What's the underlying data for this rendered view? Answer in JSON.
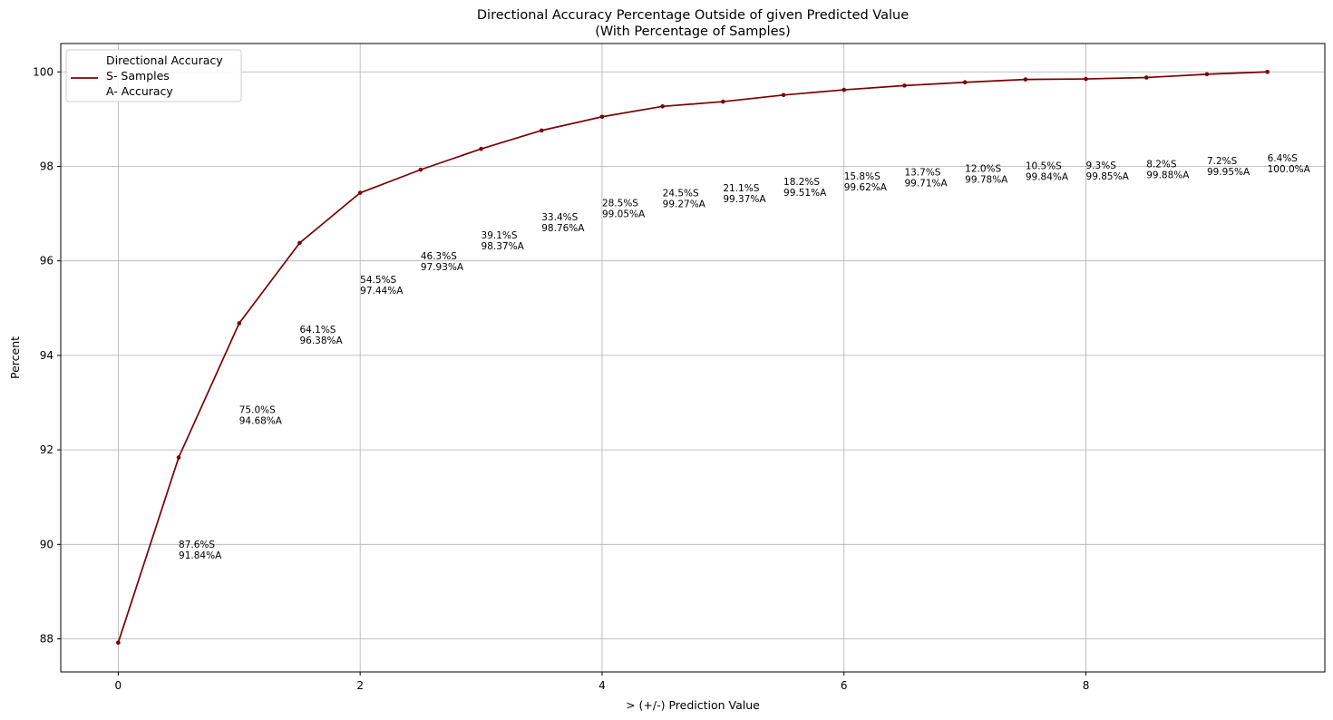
{
  "chart_data": {
    "type": "line",
    "title": [
      "Directional Accuracy Percentage Outside of given Predicted Value",
      "(With Percentage of Samples)"
    ],
    "xlabel": "> (+/-) Prediction Value",
    "ylabel": "Percent",
    "xlim": [
      -0.475,
      9.975
    ],
    "ylim": [
      87.3,
      100.6
    ],
    "xticks": [
      0,
      2,
      4,
      6,
      8
    ],
    "yticks": [
      88,
      90,
      92,
      94,
      96,
      98,
      100
    ],
    "grid": true,
    "legend": {
      "placement": "top-left",
      "entries": [
        "Directional Accuracy",
        "S- Samples",
        "A- Accuracy"
      ]
    },
    "colors": {
      "line": "#7b0000",
      "grid": "#b0b0b0"
    },
    "series": [
      {
        "name": "Directional Accuracy",
        "x": [
          0,
          0.5,
          1,
          1.5,
          2,
          2.5,
          3,
          3.5,
          4,
          4.5,
          5,
          5.5,
          6,
          6.5,
          7,
          7.5,
          8,
          8.5,
          9,
          9.5
        ],
        "y": [
          87.92,
          91.84,
          94.68,
          96.38,
          97.44,
          97.93,
          98.37,
          98.76,
          99.05,
          99.27,
          99.37,
          99.51,
          99.62,
          99.71,
          99.78,
          99.84,
          99.85,
          99.88,
          99.95,
          100.0
        ]
      }
    ],
    "annotations": [
      {
        "x": 0.5,
        "y": 89.7,
        "lines": [
          "87.6%S",
          "91.84%A"
        ]
      },
      {
        "x": 1,
        "y": 92.55,
        "lines": [
          "75.0%S",
          "94.68%A"
        ]
      },
      {
        "x": 1.5,
        "y": 94.25,
        "lines": [
          "64.1%S",
          "96.38%A"
        ]
      },
      {
        "x": 2,
        "y": 95.3,
        "lines": [
          "54.5%S",
          "97.44%A"
        ]
      },
      {
        "x": 2.5,
        "y": 95.8,
        "lines": [
          "46.3%S",
          "97.93%A"
        ]
      },
      {
        "x": 3,
        "y": 96.24,
        "lines": [
          "39.1%S",
          "98.37%A"
        ]
      },
      {
        "x": 3.5,
        "y": 96.63,
        "lines": [
          "33.4%S",
          "98.76%A"
        ]
      },
      {
        "x": 4,
        "y": 96.92,
        "lines": [
          "28.5%S",
          "99.05%A"
        ]
      },
      {
        "x": 4.5,
        "y": 97.14,
        "lines": [
          "24.5%S",
          "99.27%A"
        ]
      },
      {
        "x": 5,
        "y": 97.24,
        "lines": [
          "21.1%S",
          "99.37%A"
        ]
      },
      {
        "x": 5.5,
        "y": 97.38,
        "lines": [
          "18.2%S",
          "99.51%A"
        ]
      },
      {
        "x": 6,
        "y": 97.49,
        "lines": [
          "15.8%S",
          "99.62%A"
        ]
      },
      {
        "x": 6.5,
        "y": 97.58,
        "lines": [
          "13.7%S",
          "99.71%A"
        ]
      },
      {
        "x": 7,
        "y": 97.65,
        "lines": [
          "12.0%S",
          "99.78%A"
        ]
      },
      {
        "x": 7.5,
        "y": 97.71,
        "lines": [
          "10.5%S",
          "99.84%A"
        ]
      },
      {
        "x": 8,
        "y": 97.72,
        "lines": [
          "9.3%S",
          "99.85%A"
        ]
      },
      {
        "x": 8.5,
        "y": 97.75,
        "lines": [
          "8.2%S",
          "99.88%A"
        ]
      },
      {
        "x": 9,
        "y": 97.82,
        "lines": [
          "7.2%S",
          "99.95%A"
        ]
      },
      {
        "x": 9.5,
        "y": 97.87,
        "lines": [
          "6.4%S",
          "100.0%A"
        ]
      }
    ]
  }
}
